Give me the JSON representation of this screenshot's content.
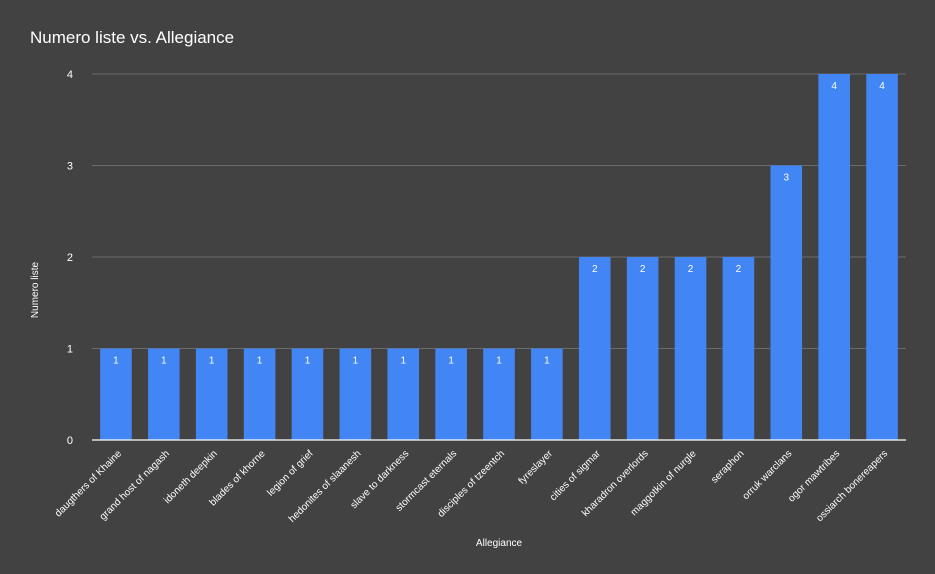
{
  "chart_data": {
    "type": "bar",
    "title": "Numero liste vs. Allegiance",
    "xlabel": "Allegiance",
    "ylabel": "Numero liste",
    "ylim": [
      0,
      4
    ],
    "yticks": [
      "0",
      "1",
      "2",
      "3",
      "4"
    ],
    "grid": true,
    "bar_color": "#4285f4",
    "categories": [
      "daugthers of Khaine",
      "grand host of nagash",
      "idoneth deepkin",
      "blades of khorne",
      "legion of grief",
      "hedonites of slaanesh",
      "slave to darkness",
      "stormcast eternals",
      "disciples of tzeentch",
      "fyreslayer",
      "cities of sigmar",
      "kharadron overlords",
      "maggotkin of nurgle",
      "seraphon",
      "orruk warclans",
      "ogor mawtribes",
      "ossiarch bonereapers"
    ],
    "values": [
      1,
      1,
      1,
      1,
      1,
      1,
      1,
      1,
      1,
      1,
      2,
      2,
      2,
      2,
      3,
      4,
      4
    ],
    "data_labels": [
      "1",
      "1",
      "1",
      "1",
      "1",
      "1",
      "1",
      "1",
      "1",
      "1",
      "2",
      "2",
      "2",
      "2",
      "3",
      "4",
      "4"
    ]
  }
}
